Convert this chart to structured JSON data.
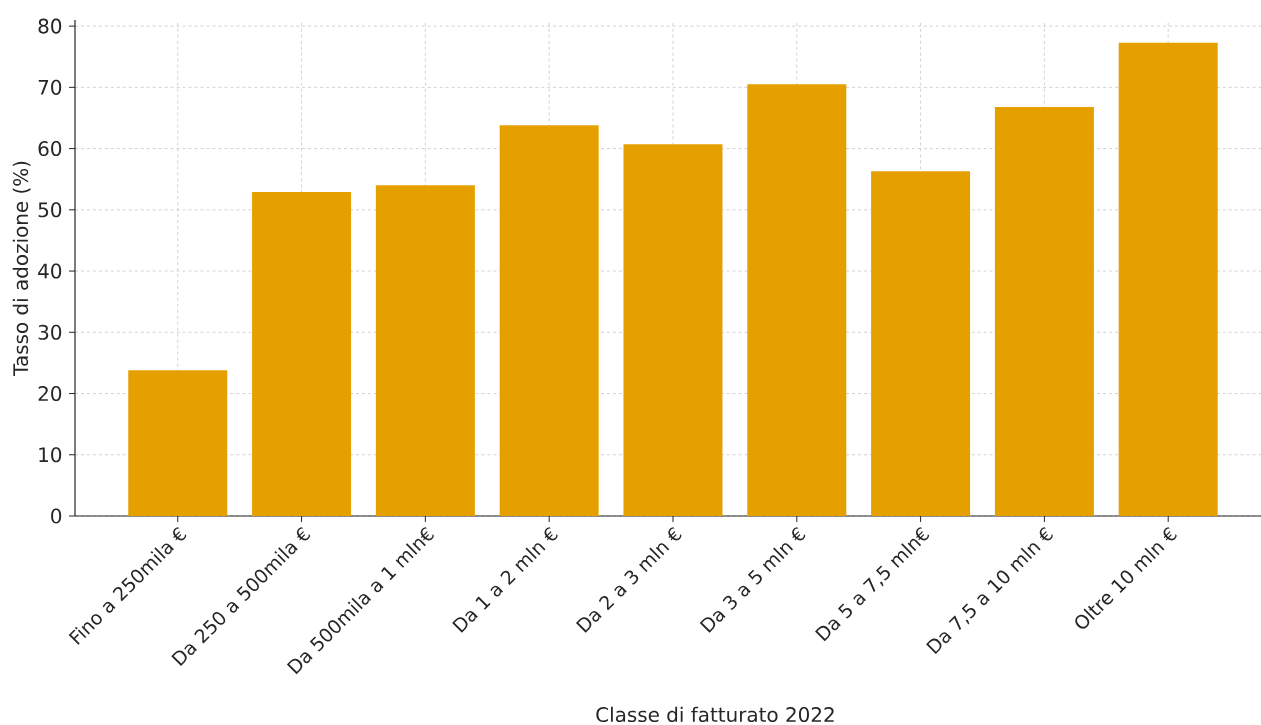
{
  "chart_data": {
    "type": "bar",
    "xlabel": "Classe di fatturato 2022",
    "ylabel": "Tasso di adozione (%)",
    "categories": [
      "Fino a 250mila €",
      "Da 250 a 500mila €",
      "Da 500mila a 1 mln€",
      "Da 1 a 2 mln €",
      "Da 2 a 3 mln €",
      "Da 3 a 5 mln €",
      "Da 5 a 7,5 mln€",
      "Da 7,5 a 10 mln €",
      "Oltre 10 mln €"
    ],
    "values": [
      23.8,
      52.9,
      54.0,
      63.8,
      60.7,
      70.5,
      56.3,
      66.8,
      77.3
    ],
    "color": "#e5a000",
    "ylim": [
      0,
      81
    ],
    "yticks": [
      0,
      10,
      20,
      30,
      40,
      50,
      60,
      70,
      80
    ],
    "grid": true
  }
}
